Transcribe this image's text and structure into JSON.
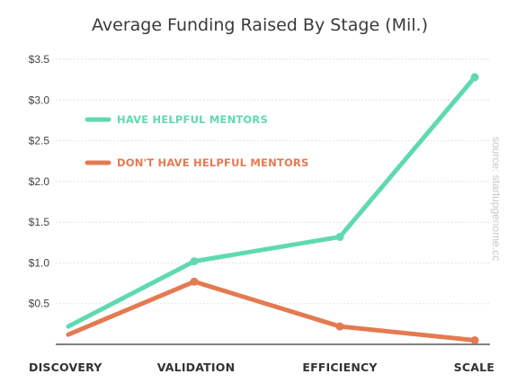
{
  "chart_data": {
    "type": "line",
    "title": "Average Funding Raised By Stage (Mil.)",
    "categories": [
      "DISCOVERY",
      "VALIDATION",
      "EFFICIENCY",
      "SCALE"
    ],
    "y_ticks": [
      "$0.5",
      "$1.0",
      "$1.5",
      "$2.0",
      "$2.5",
      "$3.0",
      "$3.5"
    ],
    "ylim": [
      0,
      3.5
    ],
    "grid": true,
    "legend_position": "upper-left",
    "source_note": "source: startupgenome.cc",
    "series": [
      {
        "name": "HAVE HELPFUL MENTORS",
        "color": "#5fd9b2",
        "points": [
          {
            "x": "DISCOVERY",
            "y": 0.22,
            "marker": false
          },
          {
            "x": "VALIDATION",
            "y": 1.02,
            "marker": true
          },
          {
            "x": "EFFICIENCY",
            "y": 1.32,
            "marker": true
          },
          {
            "x": "SCALE",
            "y": 3.28,
            "marker": true
          }
        ]
      },
      {
        "name": "DON'T HAVE HELPFUL MENTORS",
        "color": "#e47a51",
        "points": [
          {
            "x": "DISCOVERY",
            "y": 0.12,
            "marker": false
          },
          {
            "x": "VALIDATION",
            "y": 0.77,
            "marker": true
          },
          {
            "x": "EFFICIENCY",
            "y": 0.22,
            "marker": true
          },
          {
            "x": "SCALE",
            "y": 0.05,
            "marker": true
          }
        ]
      }
    ]
  }
}
